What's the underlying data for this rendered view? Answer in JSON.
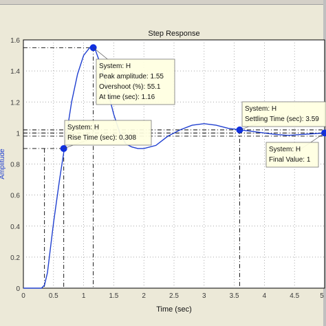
{
  "chart_data": {
    "type": "line",
    "title": "Step Response",
    "xlabel": "Time (sec)",
    "ylabel": "Amplitude",
    "xlim": [
      0,
      5
    ],
    "ylim": [
      0,
      1.6
    ],
    "grid": true,
    "xticks": [
      "0",
      "0.5",
      "1",
      "1.5",
      "2",
      "2.5",
      "3",
      "3.5",
      "4",
      "4.5",
      "5"
    ],
    "yticks": [
      "0",
      "0.2",
      "0.4",
      "0.6",
      "0.8",
      "1",
      "1.2",
      "1.4",
      "1.6"
    ],
    "series": [
      {
        "x": [
          0,
          0.3,
          0.35,
          0.4,
          0.5,
          0.6,
          0.7,
          0.8,
          0.9,
          1.0,
          1.1,
          1.16,
          1.2,
          1.3,
          1.4,
          1.5,
          1.6,
          1.7,
          1.8,
          1.9,
          2.0,
          2.2,
          2.4,
          2.6,
          2.8,
          3.0,
          3.2,
          3.4,
          3.6,
          3.8,
          4.0,
          4.2,
          4.4,
          4.6,
          4.8,
          5.0
        ],
        "y": [
          0,
          0,
          0.02,
          0.1,
          0.42,
          0.7,
          0.95,
          1.2,
          1.38,
          1.5,
          1.55,
          1.55,
          1.53,
          1.42,
          1.27,
          1.12,
          1.0,
          0.93,
          0.91,
          0.9,
          0.9,
          0.92,
          0.98,
          1.02,
          1.05,
          1.06,
          1.05,
          1.03,
          1.02,
          1.01,
          1.0,
          0.99,
          0.985,
          0.99,
          0.995,
          1.0
        ],
        "color": "#1f3fd0"
      }
    ],
    "markers": [
      {
        "x": 0.67,
        "y": 0.9
      },
      {
        "x": 1.16,
        "y": 1.55
      },
      {
        "x": 3.59,
        "y": 1.02
      },
      {
        "x": 5.0,
        "y": 1.0
      }
    ],
    "annotations": [
      {
        "lines": [
          "System: H",
          "Peak amplitude: 1.55",
          "Overshoot (%): 55.1",
          "At time (sec): 1.16"
        ]
      },
      {
        "lines": [
          "System: H",
          "Rise Time (sec): 0.308"
        ]
      },
      {
        "lines": [
          "System: H",
          "Settling Time (sec): 3.59"
        ]
      },
      {
        "lines": [
          "System: H",
          "Final Value: 1"
        ]
      }
    ]
  }
}
